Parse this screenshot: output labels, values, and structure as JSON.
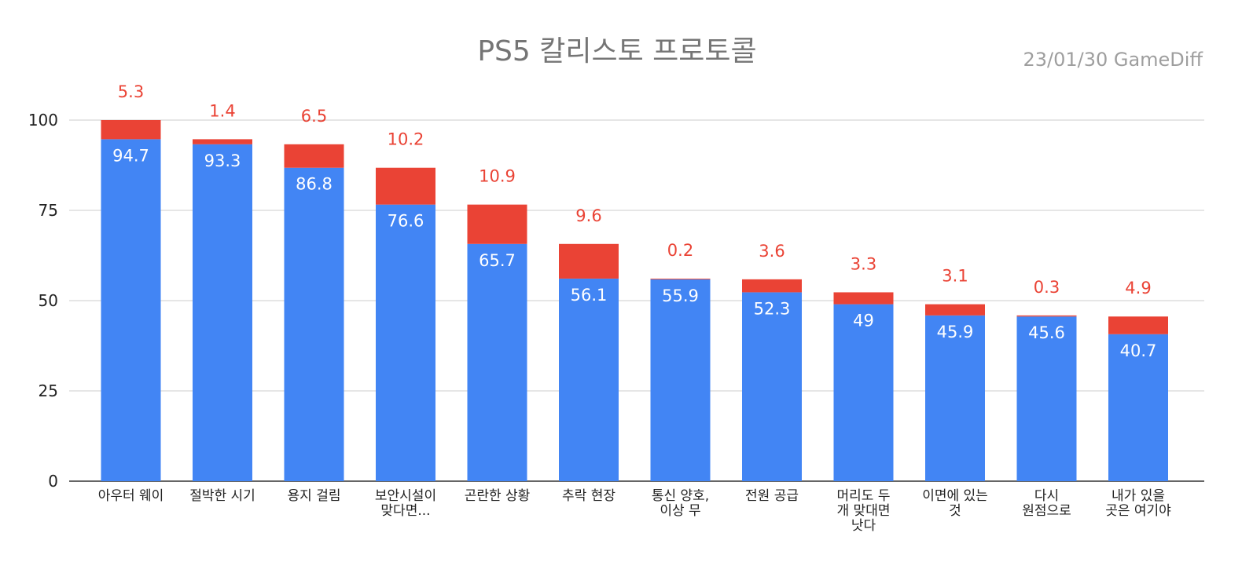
{
  "chart_data": {
    "type": "bar",
    "stacked": true,
    "title": "PS5 칼리스토 프로토콜",
    "note": "23/01/30  GameDiff",
    "categories": [
      [
        "아우터 웨이"
      ],
      [
        "절박한 시기"
      ],
      [
        "용지 걸림"
      ],
      [
        "보안시설이",
        "맞다면..."
      ],
      [
        "곤란한 상황"
      ],
      [
        "추락 현장"
      ],
      [
        "통신 양호,",
        "이상 무"
      ],
      [
        "전원 공급"
      ],
      [
        "머리도 두",
        "개 맞대면",
        "낫다"
      ],
      [
        "이면에 있는",
        "것"
      ],
      [
        "다시",
        "원점으로"
      ],
      [
        "내가 있을",
        "곳은 여기야"
      ]
    ],
    "series": [
      {
        "values": [
          94.7,
          93.3,
          86.8,
          76.6,
          65.7,
          56.1,
          55.9,
          52.3,
          49,
          45.9,
          45.6,
          40.7
        ],
        "value_labels": [
          "94.7",
          "93.3",
          "86.8",
          "76.6",
          "65.7",
          "56.1",
          "55.9",
          "52.3",
          "49",
          "45.9",
          "45.6",
          "40.7"
        ],
        "color": "#4285f4"
      },
      {
        "values": [
          5.3,
          1.4,
          6.5,
          10.2,
          10.9,
          9.6,
          0.2,
          3.6,
          3.3,
          3.1,
          0.3,
          4.9
        ],
        "value_labels": [
          "5.3",
          "1.4",
          "6.5",
          "10.2",
          "10.9",
          "9.6",
          "0.2",
          "3.6",
          "3.3",
          "3.1",
          "0.3",
          "4.9"
        ],
        "color": "#ea4335"
      }
    ],
    "ylim": [
      0,
      100
    ],
    "yticks": [
      "0",
      "25",
      "50",
      "75",
      "100"
    ],
    "grid": true,
    "legend": "none"
  }
}
